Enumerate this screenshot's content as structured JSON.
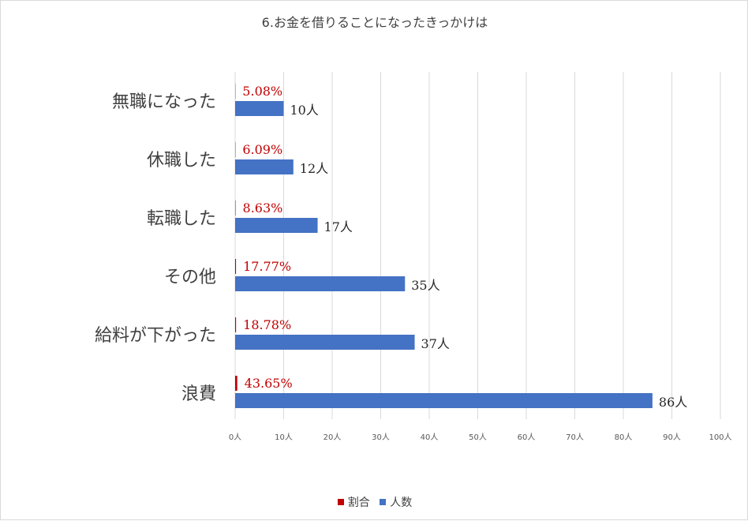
{
  "chart_data": {
    "type": "bar",
    "orientation": "horizontal",
    "title": "6.お金を借りることになったきっかけは",
    "categories": [
      "無職になった",
      "休職した",
      "転職した",
      "その他",
      "給料が下がった",
      "浪費"
    ],
    "series": [
      {
        "name": "割合",
        "color": "#c00000",
        "values": [
          0.0508,
          0.0609,
          0.0863,
          0.1777,
          0.1878,
          0.4365
        ],
        "labels": [
          "5.08%",
          "6.09%",
          "8.63%",
          "17.77%",
          "18.78%",
          "43.65%"
        ]
      },
      {
        "name": "人数",
        "color": "#4472c4",
        "values": [
          10,
          12,
          17,
          35,
          37,
          86
        ],
        "labels": [
          "10人",
          "12人",
          "17人",
          "35人",
          "37人",
          "86人"
        ]
      }
    ],
    "xlim": [
      0,
      100
    ],
    "xticks": [
      0,
      10,
      20,
      30,
      40,
      50,
      60,
      70,
      80,
      90,
      100
    ],
    "xtick_labels": [
      "0人",
      "10人",
      "20人",
      "30人",
      "40人",
      "50人",
      "60人",
      "70人",
      "80人",
      "90人",
      "100人"
    ],
    "grid": true,
    "legend_position": "bottom"
  }
}
